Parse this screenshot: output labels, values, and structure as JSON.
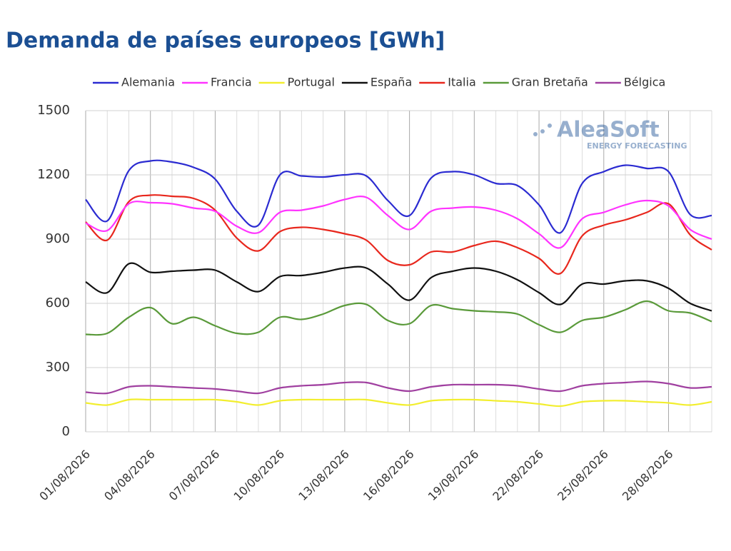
{
  "chart_data": {
    "type": "line",
    "title": "Demanda de países europeos [GWh]",
    "watermark": {
      "brand": "AleaSoft",
      "tagline": "ENERGY FORECASTING"
    },
    "categories": [
      "01/08/2026",
      null,
      null,
      "04/08/2026",
      null,
      null,
      "07/08/2026",
      null,
      null,
      "10/08/2026",
      null,
      null,
      "13/08/2026",
      null,
      null,
      "16/08/2026",
      null,
      null,
      "19/08/2026",
      null,
      null,
      "22/08/2026",
      null,
      null,
      "25/08/2026",
      null,
      null,
      "28/08/2026",
      null,
      null
    ],
    "series": [
      {
        "name": "Alemania",
        "color": "#2b2bd1",
        "values": [
          1085,
          985,
          1220,
          1265,
          1260,
          1235,
          1180,
          1030,
          965,
          1200,
          1195,
          1190,
          1200,
          1195,
          1080,
          1010,
          1185,
          1215,
          1200,
          1160,
          1150,
          1060,
          930,
          1160,
          1215,
          1245,
          1230,
          1215,
          1015,
          1010
        ]
      },
      {
        "name": "Francia",
        "color": "#ff33ff",
        "values": [
          975,
          940,
          1065,
          1070,
          1065,
          1045,
          1030,
          960,
          930,
          1025,
          1035,
          1055,
          1085,
          1095,
          1010,
          945,
          1030,
          1045,
          1050,
          1035,
          995,
          925,
          860,
          995,
          1025,
          1060,
          1080,
          1055,
          945,
          900
        ]
      },
      {
        "name": "Portugal",
        "color": "#f2ee2e",
        "values": [
          135,
          125,
          150,
          150,
          150,
          150,
          150,
          140,
          125,
          145,
          150,
          150,
          150,
          150,
          135,
          125,
          145,
          150,
          150,
          145,
          140,
          130,
          120,
          140,
          145,
          145,
          140,
          135,
          125,
          140
        ]
      },
      {
        "name": "España",
        "color": "#111111",
        "values": [
          700,
          650,
          785,
          745,
          750,
          755,
          755,
          700,
          655,
          725,
          730,
          745,
          765,
          765,
          690,
          615,
          720,
          750,
          765,
          750,
          710,
          650,
          595,
          690,
          690,
          705,
          705,
          670,
          600,
          565
        ]
      },
      {
        "name": "Italia",
        "color": "#e8271d",
        "values": [
          980,
          895,
          1075,
          1105,
          1100,
          1090,
          1035,
          905,
          845,
          935,
          955,
          945,
          925,
          895,
          800,
          780,
          840,
          840,
          870,
          890,
          860,
          810,
          740,
          915,
          965,
          990,
          1025,
          1065,
          920,
          850
        ]
      },
      {
        "name": "Gran Bretaña",
        "color": "#5a9a3a",
        "values": [
          455,
          460,
          535,
          580,
          505,
          535,
          495,
          460,
          465,
          535,
          525,
          550,
          590,
          595,
          520,
          505,
          590,
          575,
          565,
          560,
          550,
          500,
          465,
          520,
          535,
          570,
          610,
          565,
          555,
          515
        ]
      },
      {
        "name": "Bélgica",
        "color": "#a040a0",
        "values": [
          185,
          180,
          210,
          215,
          210,
          205,
          200,
          190,
          180,
          205,
          215,
          220,
          230,
          230,
          205,
          190,
          210,
          220,
          220,
          220,
          215,
          200,
          190,
          215,
          225,
          230,
          235,
          225,
          205,
          210
        ]
      }
    ],
    "ylim": [
      0,
      1500
    ],
    "yticks": [
      0,
      300,
      600,
      900,
      1200,
      1500
    ],
    "grid": true
  }
}
